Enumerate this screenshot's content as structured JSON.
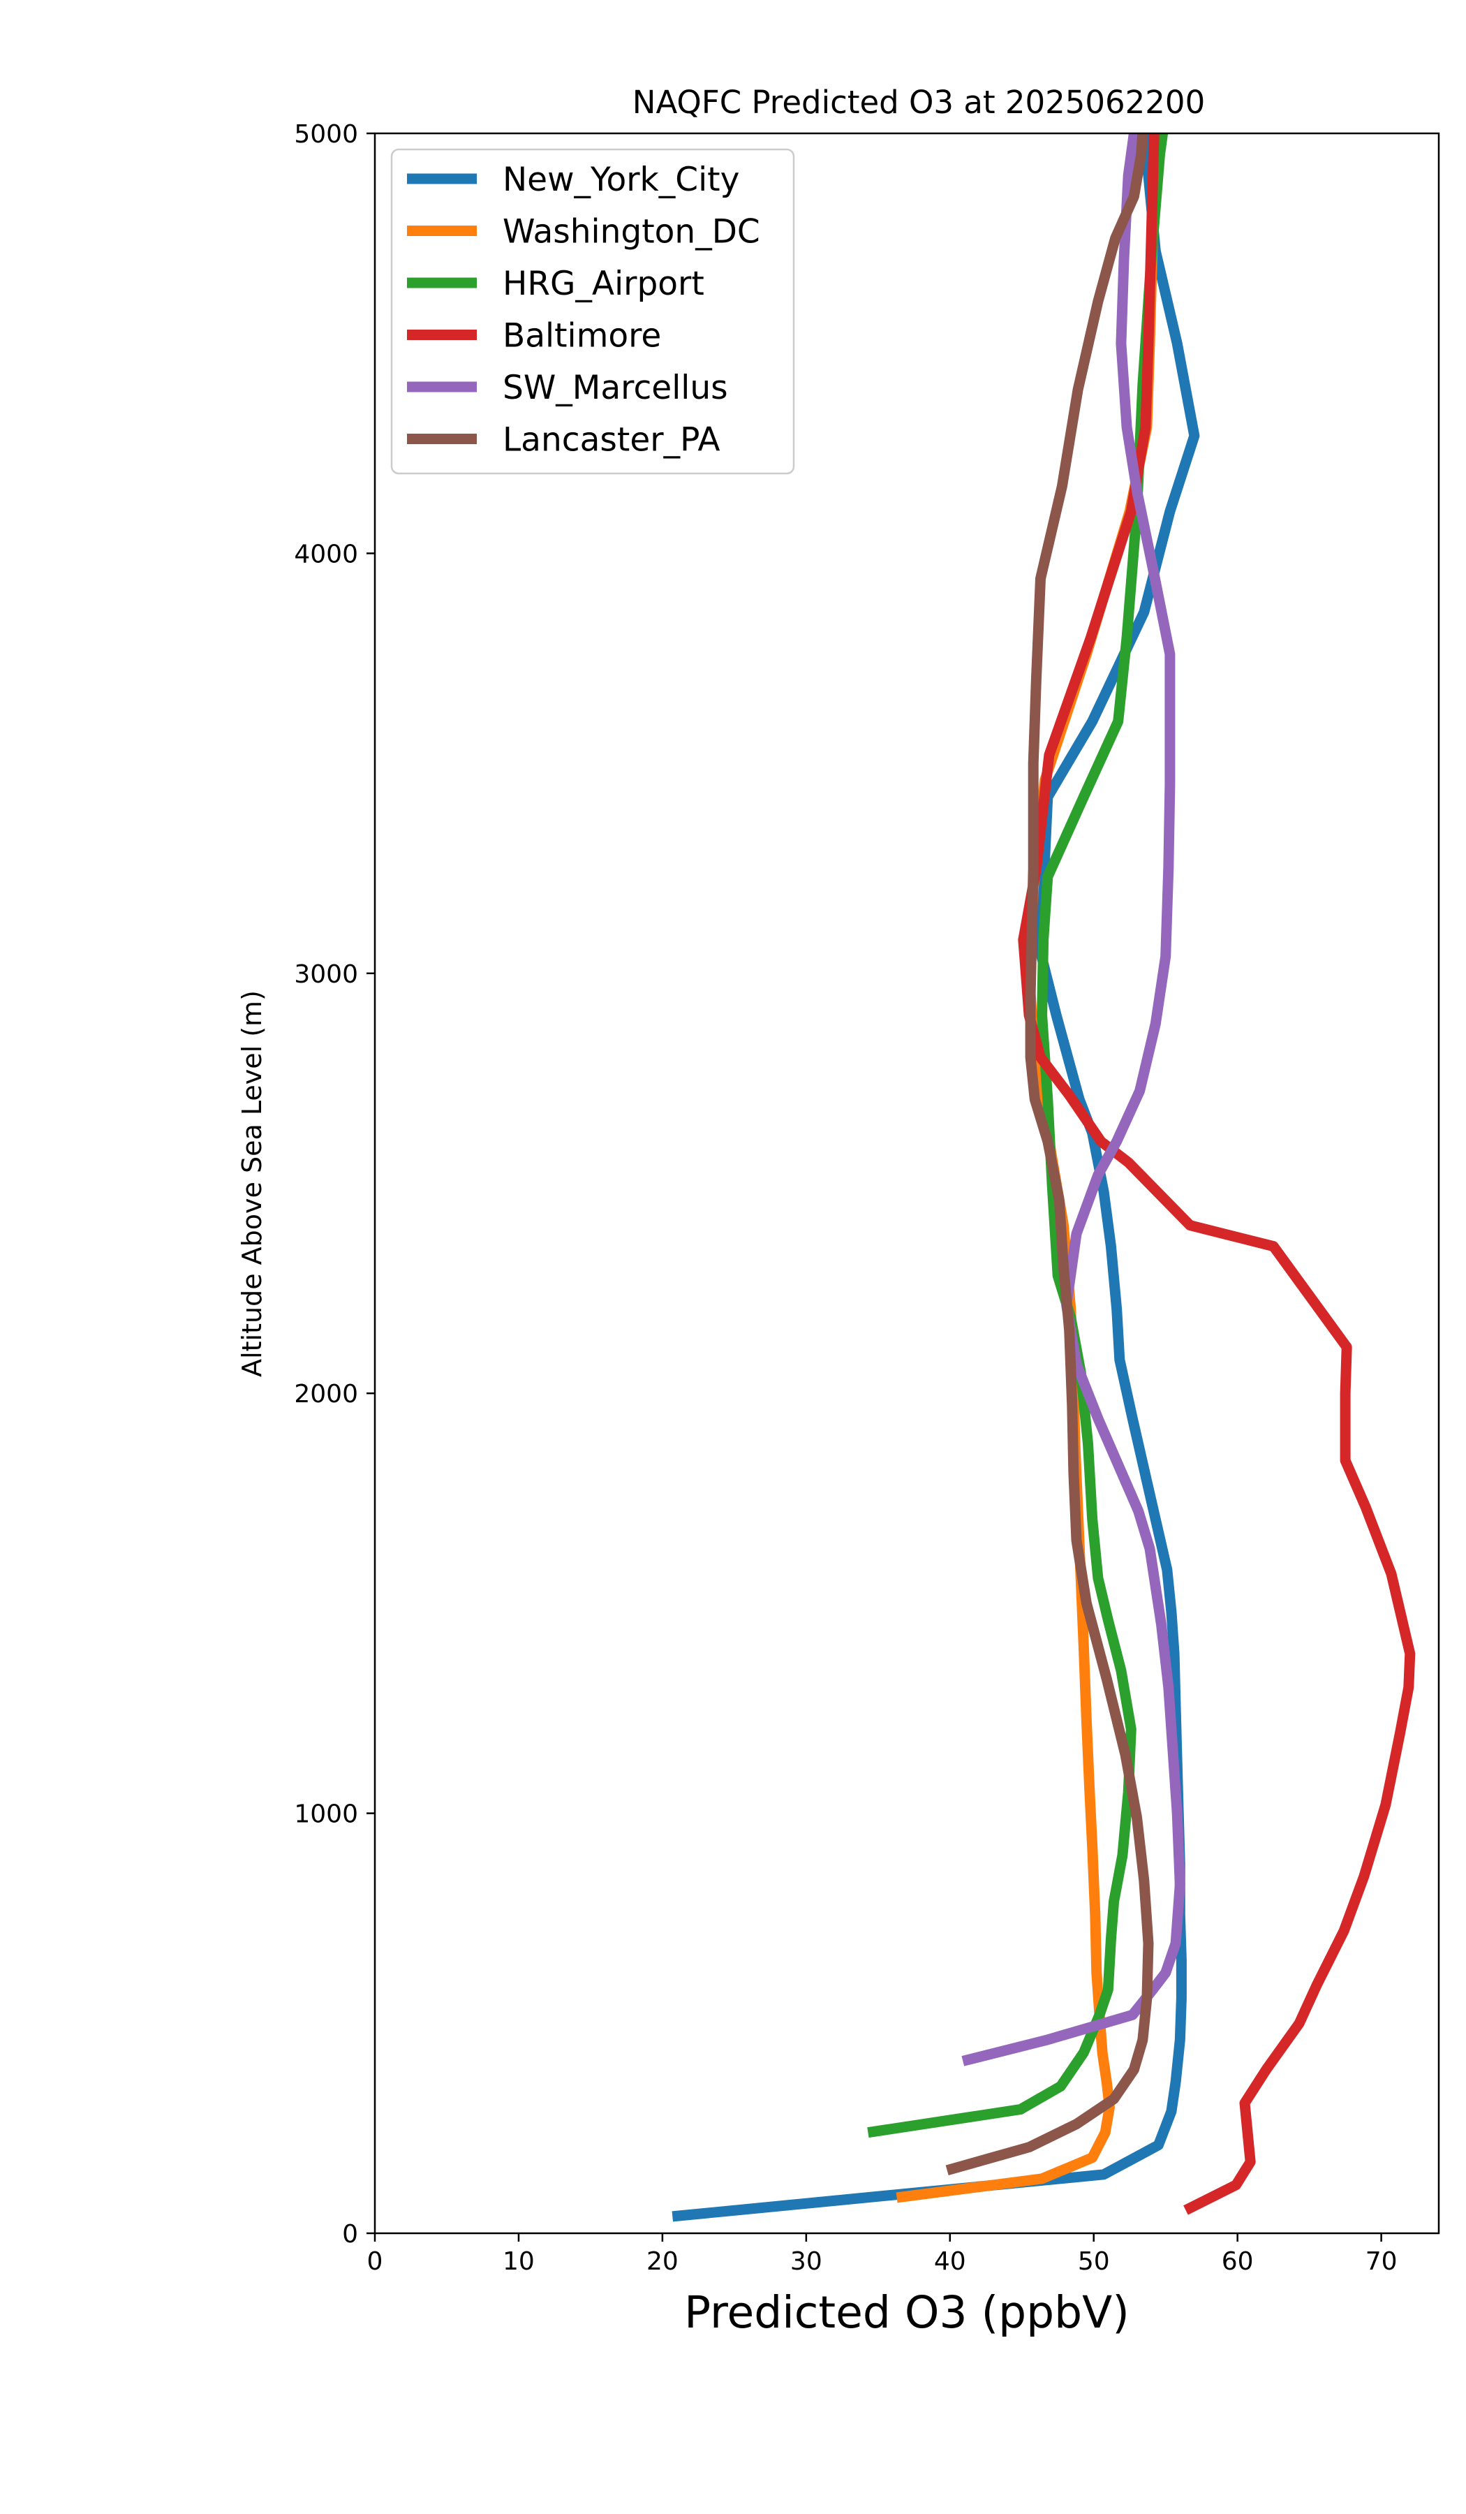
{
  "chart_data": {
    "type": "line",
    "title": "NAQFC Predicted O3 at 2025062200",
    "xlabel": "Predicted O3 (ppbV)",
    "ylabel": "Altitude Above Sea Level (m)",
    "xlim": [
      0,
      74
    ],
    "ylim": [
      0,
      5000
    ],
    "xticks": [
      "0",
      "10",
      "20",
      "30",
      "40",
      "50",
      "60",
      "70"
    ],
    "yticks": [
      "0",
      "1000",
      "2000",
      "3000",
      "4000",
      "5000"
    ],
    "xtick_values": [
      0,
      10,
      20,
      30,
      40,
      50,
      60,
      70
    ],
    "ytick_values": [
      0,
      1000,
      2000,
      3000,
      4000,
      5000
    ],
    "grid": false,
    "legend_position": "top-left",
    "series": [
      {
        "name": "New_York_City",
        "color": "#1f77b4",
        "points": [
          [
            20.7,
            40
          ],
          [
            50.7,
            140
          ],
          [
            54.5,
            210
          ],
          [
            55.4,
            290
          ],
          [
            55.7,
            360
          ],
          [
            56.0,
            460
          ],
          [
            56.1,
            560
          ],
          [
            56.1,
            650
          ],
          [
            56.0,
            760
          ],
          [
            56.0,
            880
          ],
          [
            55.9,
            1000
          ],
          [
            55.8,
            1120
          ],
          [
            55.7,
            1250
          ],
          [
            55.6,
            1380
          ],
          [
            55.4,
            1480
          ],
          [
            55.1,
            1580
          ],
          [
            53.9,
            1760
          ],
          [
            52.7,
            1940
          ],
          [
            51.8,
            2080
          ],
          [
            51.6,
            2200
          ],
          [
            51.2,
            2350
          ],
          [
            50.7,
            2480
          ],
          [
            49.9,
            2620
          ],
          [
            49.0,
            2700
          ],
          [
            47.4,
            2900
          ],
          [
            46.3,
            3050
          ],
          [
            46.5,
            3200
          ],
          [
            46.8,
            3420
          ],
          [
            49.9,
            3600
          ],
          [
            53.5,
            3860
          ],
          [
            55.3,
            4100
          ],
          [
            57.0,
            4280
          ],
          [
            55.8,
            4500
          ],
          [
            54.3,
            4720
          ],
          [
            53.8,
            4900
          ],
          [
            53.6,
            5000
          ]
        ]
      },
      {
        "name": "Washington_DC",
        "color": "#ff7f0e",
        "points": [
          [
            36.3,
            85
          ],
          [
            46.4,
            130
          ],
          [
            49.9,
            180
          ],
          [
            50.8,
            240
          ],
          [
            51.1,
            300
          ],
          [
            50.9,
            360
          ],
          [
            50.6,
            430
          ],
          [
            50.4,
            520
          ],
          [
            50.2,
            620
          ],
          [
            50.1,
            760
          ],
          [
            49.9,
            920
          ],
          [
            49.7,
            1060
          ],
          [
            49.5,
            1220
          ],
          [
            49.3,
            1400
          ],
          [
            49.1,
            1560
          ],
          [
            48.9,
            1720
          ],
          [
            48.7,
            1880
          ],
          [
            48.6,
            2020
          ],
          [
            48.4,
            2200
          ],
          [
            47.9,
            2400
          ],
          [
            46.9,
            2600
          ],
          [
            45.9,
            2800
          ],
          [
            45.5,
            3000
          ],
          [
            45.8,
            3200
          ],
          [
            46.6,
            3460
          ],
          [
            49.5,
            3760
          ],
          [
            52.5,
            4100
          ],
          [
            53.7,
            4300
          ],
          [
            53.9,
            4500
          ],
          [
            54.1,
            4750
          ],
          [
            54.3,
            4950
          ],
          [
            54.4,
            5000
          ]
        ]
      },
      {
        "name": "HRG_Airport",
        "color": "#2ca02c",
        "points": [
          [
            34.3,
            240
          ],
          [
            44.9,
            295
          ],
          [
            47.7,
            350
          ],
          [
            49.3,
            430
          ],
          [
            50.4,
            520
          ],
          [
            51.0,
            580
          ],
          [
            51.2,
            700
          ],
          [
            51.4,
            790
          ],
          [
            52.0,
            900
          ],
          [
            52.4,
            1050
          ],
          [
            52.6,
            1200
          ],
          [
            51.9,
            1340
          ],
          [
            51.0,
            1460
          ],
          [
            50.3,
            1560
          ],
          [
            49.9,
            1700
          ],
          [
            49.6,
            1880
          ],
          [
            49.1,
            2050
          ],
          [
            48.4,
            2180
          ],
          [
            47.5,
            2280
          ],
          [
            47.1,
            2500
          ],
          [
            46.8,
            2700
          ],
          [
            46.4,
            2900
          ],
          [
            46.5,
            3080
          ],
          [
            46.8,
            3230
          ],
          [
            49.3,
            3420
          ],
          [
            51.7,
            3600
          ],
          [
            52.3,
            3800
          ],
          [
            53.0,
            4100
          ],
          [
            53.4,
            4400
          ],
          [
            54.0,
            4700
          ],
          [
            54.6,
            4950
          ],
          [
            54.8,
            5000
          ]
        ]
      },
      {
        "name": "Baltimore",
        "color": "#d62728",
        "points": [
          [
            56.4,
            55
          ],
          [
            59.9,
            115
          ],
          [
            60.9,
            170
          ],
          [
            60.7,
            240
          ],
          [
            60.5,
            310
          ],
          [
            62.0,
            390
          ],
          [
            64.3,
            500
          ],
          [
            65.5,
            590
          ],
          [
            67.4,
            720
          ],
          [
            68.8,
            850
          ],
          [
            70.3,
            1020
          ],
          [
            71.3,
            1190
          ],
          [
            71.9,
            1300
          ],
          [
            72.0,
            1380
          ],
          [
            70.7,
            1570
          ],
          [
            68.9,
            1730
          ],
          [
            67.5,
            1840
          ],
          [
            67.5,
            2000
          ],
          [
            67.6,
            2110
          ],
          [
            62.5,
            2350
          ],
          [
            56.7,
            2400
          ],
          [
            52.4,
            2550
          ],
          [
            50.5,
            2600
          ],
          [
            48.3,
            2710
          ],
          [
            46.3,
            2800
          ],
          [
            45.5,
            2900
          ],
          [
            45.1,
            3080
          ],
          [
            46.0,
            3250
          ],
          [
            46.9,
            3520
          ],
          [
            49.8,
            3800
          ],
          [
            52.6,
            4100
          ],
          [
            53.6,
            4300
          ],
          [
            53.8,
            4500
          ],
          [
            54.0,
            4750
          ],
          [
            54.2,
            5000
          ]
        ]
      },
      {
        "name": "SW_Marcellus",
        "color": "#9467bd",
        "points": [
          [
            40.9,
            410
          ],
          [
            46.7,
            460
          ],
          [
            52.7,
            520
          ],
          [
            54.1,
            580
          ],
          [
            55.0,
            620
          ],
          [
            55.7,
            690
          ],
          [
            56.0,
            830
          ],
          [
            55.8,
            1000
          ],
          [
            55.5,
            1150
          ],
          [
            55.2,
            1300
          ],
          [
            54.7,
            1450
          ],
          [
            53.9,
            1630
          ],
          [
            53.1,
            1720
          ],
          [
            51.7,
            1830
          ],
          [
            50.3,
            1940
          ],
          [
            48.8,
            2070
          ],
          [
            48.1,
            2210
          ],
          [
            48.8,
            2380
          ],
          [
            50.3,
            2520
          ],
          [
            51.6,
            2600
          ],
          [
            53.2,
            2720
          ],
          [
            54.3,
            2880
          ],
          [
            55.0,
            3040
          ],
          [
            55.2,
            3250
          ],
          [
            55.3,
            3450
          ],
          [
            55.3,
            3760
          ],
          [
            54.2,
            3950
          ],
          [
            53.0,
            4150
          ],
          [
            52.3,
            4300
          ],
          [
            51.9,
            4500
          ],
          [
            52.1,
            4700
          ],
          [
            52.4,
            4900
          ],
          [
            52.8,
            5000
          ]
        ]
      },
      {
        "name": "Lancaster_PA",
        "color": "#8c564b",
        "points": [
          [
            39.8,
            150
          ],
          [
            45.5,
            205
          ],
          [
            48.8,
            260
          ],
          [
            51.4,
            320
          ],
          [
            52.8,
            390
          ],
          [
            53.4,
            460
          ],
          [
            53.7,
            560
          ],
          [
            53.8,
            690
          ],
          [
            53.5,
            840
          ],
          [
            53.0,
            990
          ],
          [
            52.2,
            1140
          ],
          [
            50.9,
            1320
          ],
          [
            49.5,
            1500
          ],
          [
            48.8,
            1650
          ],
          [
            48.6,
            1810
          ],
          [
            48.5,
            1970
          ],
          [
            48.3,
            2150
          ],
          [
            47.9,
            2300
          ],
          [
            47.6,
            2460
          ],
          [
            46.8,
            2600
          ],
          [
            45.9,
            2700
          ],
          [
            45.6,
            2800
          ],
          [
            45.6,
            2950
          ],
          [
            45.7,
            3100
          ],
          [
            45.8,
            3250
          ],
          [
            45.8,
            3500
          ],
          [
            46.0,
            3700
          ],
          [
            46.3,
            3940
          ],
          [
            47.8,
            4160
          ],
          [
            48.9,
            4390
          ],
          [
            50.3,
            4600
          ],
          [
            51.5,
            4750
          ],
          [
            52.8,
            4850
          ],
          [
            53.3,
            4950
          ],
          [
            53.4,
            5000
          ]
        ]
      }
    ]
  }
}
